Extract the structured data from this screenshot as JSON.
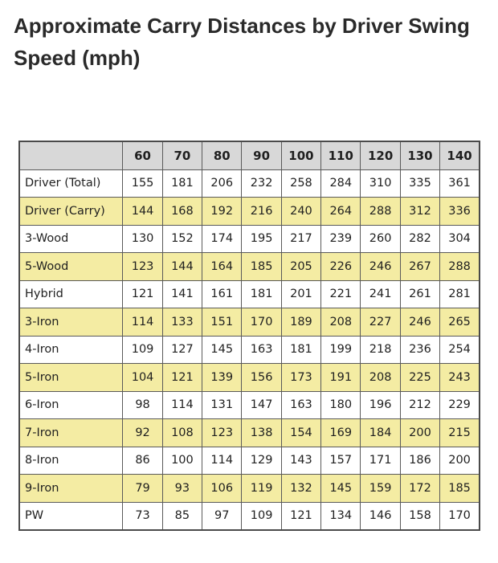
{
  "title": "Approximate Carry Distances by Driver Swing Speed (mph)",
  "colors": {
    "header_bg": "#d8d8d8",
    "stripe_bg": "#f4eca3",
    "row_bg": "#ffffff",
    "border": "#5a5a5a"
  },
  "table": {
    "speeds": [
      "60",
      "70",
      "80",
      "90",
      "100",
      "110",
      "120",
      "130",
      "140"
    ],
    "rows": [
      {
        "club": "Driver (Total)",
        "values": [
          "155",
          "181",
          "206",
          "232",
          "258",
          "284",
          "310",
          "335",
          "361"
        ]
      },
      {
        "club": "Driver (Carry)",
        "values": [
          "144",
          "168",
          "192",
          "216",
          "240",
          "264",
          "288",
          "312",
          "336"
        ]
      },
      {
        "club": "3-Wood",
        "values": [
          "130",
          "152",
          "174",
          "195",
          "217",
          "239",
          "260",
          "282",
          "304"
        ]
      },
      {
        "club": "5-Wood",
        "values": [
          "123",
          "144",
          "164",
          "185",
          "205",
          "226",
          "246",
          "267",
          "288"
        ]
      },
      {
        "club": "Hybrid",
        "values": [
          "121",
          "141",
          "161",
          "181",
          "201",
          "221",
          "241",
          "261",
          "281"
        ]
      },
      {
        "club": "3-Iron",
        "values": [
          "114",
          "133",
          "151",
          "170",
          "189",
          "208",
          "227",
          "246",
          "265"
        ]
      },
      {
        "club": "4-Iron",
        "values": [
          "109",
          "127",
          "145",
          "163",
          "181",
          "199",
          "218",
          "236",
          "254"
        ]
      },
      {
        "club": "5-Iron",
        "values": [
          "104",
          "121",
          "139",
          "156",
          "173",
          "191",
          "208",
          "225",
          "243"
        ]
      },
      {
        "club": "6-Iron",
        "values": [
          "98",
          "114",
          "131",
          "147",
          "163",
          "180",
          "196",
          "212",
          "229"
        ]
      },
      {
        "club": "7-Iron",
        "values": [
          "92",
          "108",
          "123",
          "138",
          "154",
          "169",
          "184",
          "200",
          "215"
        ]
      },
      {
        "club": "8-Iron",
        "values": [
          "86",
          "100",
          "114",
          "129",
          "143",
          "157",
          "171",
          "186",
          "200"
        ]
      },
      {
        "club": "9-Iron",
        "values": [
          "79",
          "93",
          "106",
          "119",
          "132",
          "145",
          "159",
          "172",
          "185"
        ]
      },
      {
        "club": "PW",
        "values": [
          "73",
          "85",
          "97",
          "109",
          "121",
          "134",
          "146",
          "158",
          "170"
        ]
      }
    ]
  }
}
